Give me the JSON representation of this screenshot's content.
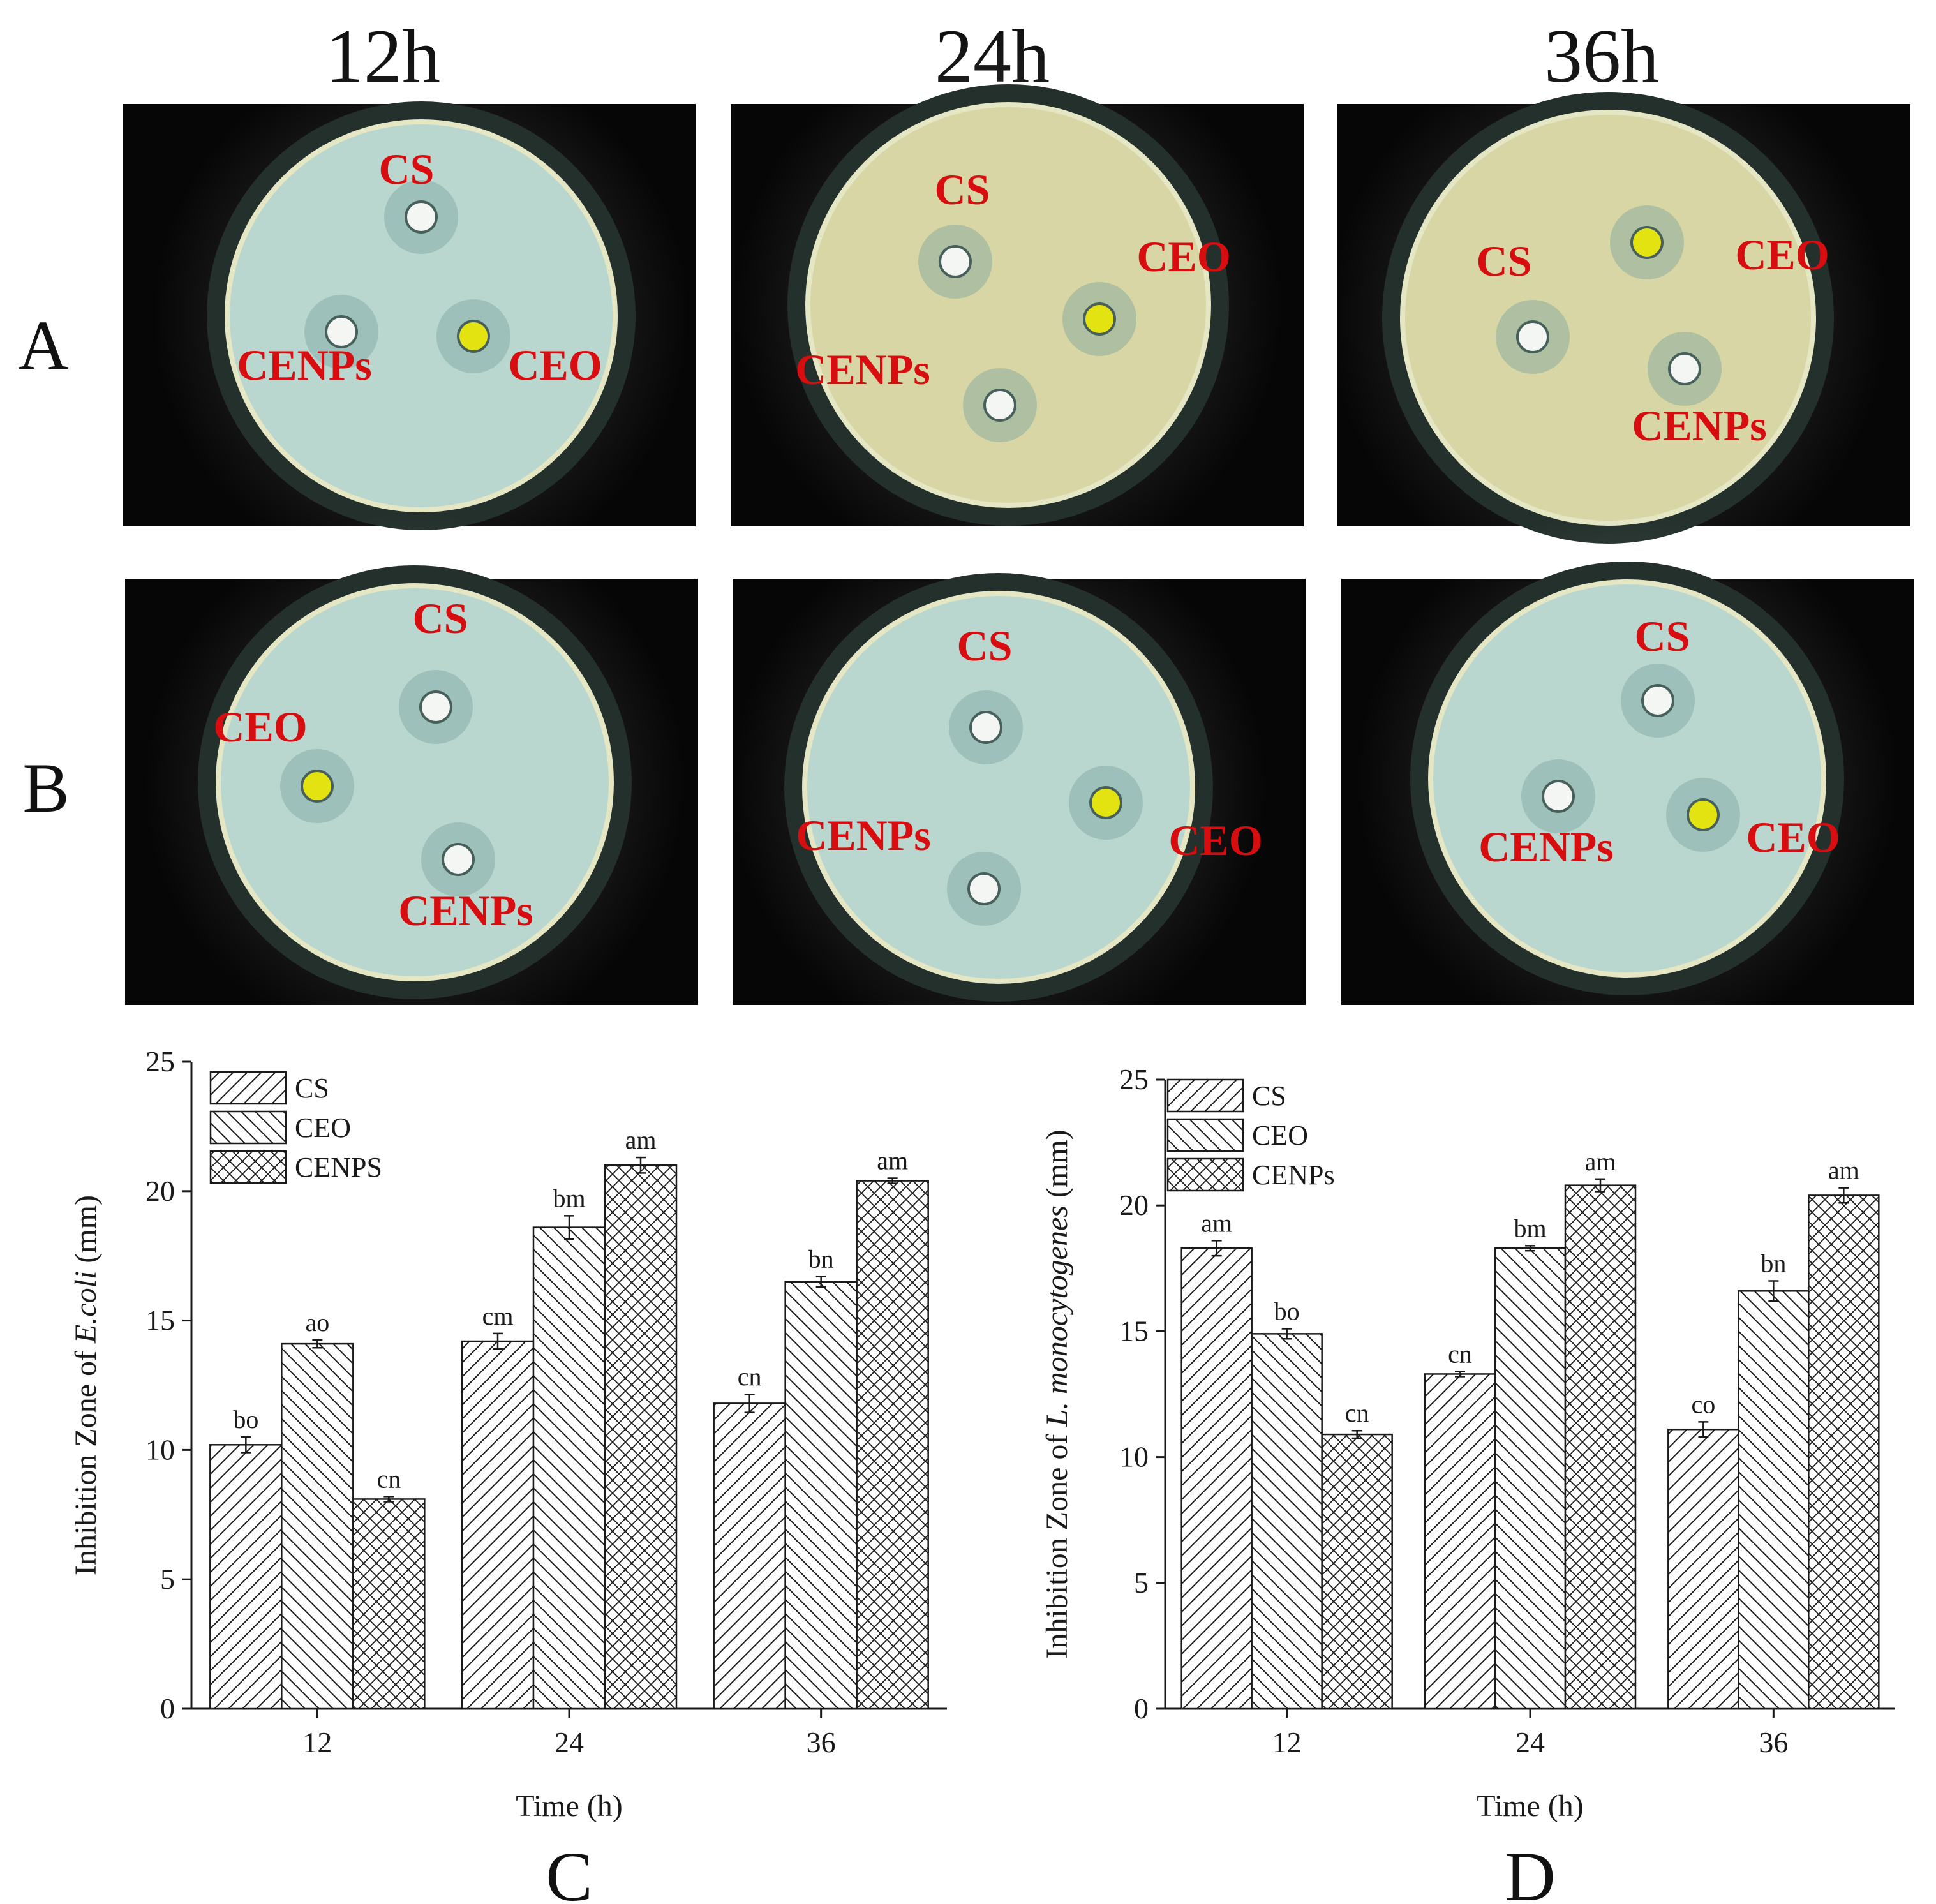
{
  "figure": {
    "time_headers": [
      "12h",
      "24h",
      "36h"
    ],
    "row_labels": [
      "A",
      "B"
    ],
    "plates": [
      {
        "row": "A",
        "time": "12h",
        "labels": [
          "CS",
          "CENPs",
          "CEO"
        ]
      },
      {
        "row": "A",
        "time": "24h",
        "labels": [
          "CS",
          "CEO",
          "CENPs"
        ]
      },
      {
        "row": "A",
        "time": "36h",
        "labels": [
          "CS",
          "CEO",
          "CENPs"
        ]
      },
      {
        "row": "B",
        "time": "12h",
        "labels": [
          "CS",
          "CEO",
          "CENPs"
        ]
      },
      {
        "row": "B",
        "time": "24h",
        "labels": [
          "CS",
          "CENPs",
          "CEO"
        ]
      },
      {
        "row": "B",
        "time": "36h",
        "labels": [
          "CS",
          "CENPs",
          "CEO"
        ]
      }
    ],
    "colors": {
      "label_red": "#d80d10",
      "photo_bg": "#060606",
      "agar": "#b9d7cf"
    }
  },
  "chart_data": [
    {
      "panel": "C",
      "type": "bar",
      "title": "",
      "xlabel": "Time (h)",
      "ylabel_prefix": "Inhibition Zone of ",
      "ylabel_italic": "E.coli",
      "ylabel_suffix": " (mm)",
      "ylim": [
        0,
        25
      ],
      "yticks": [
        0,
        5,
        10,
        15,
        20,
        25
      ],
      "categories": [
        "12",
        "24",
        "36"
      ],
      "legend": [
        "CS",
        "CEO",
        "CENPS"
      ],
      "legend_position": "top-left",
      "series": [
        {
          "name": "CS",
          "pattern": "diag-fwd",
          "values": [
            10.2,
            14.2,
            11.8
          ],
          "errors": [
            0.3,
            0.3,
            0.35
          ],
          "letters": [
            "bo",
            "cm",
            "cn"
          ]
        },
        {
          "name": "CEO",
          "pattern": "diag-back",
          "values": [
            14.1,
            18.6,
            16.5
          ],
          "errors": [
            0.15,
            0.45,
            0.2
          ],
          "letters": [
            "ao",
            "bm",
            "bn"
          ]
        },
        {
          "name": "CENPS",
          "pattern": "cross",
          "values": [
            8.1,
            21.0,
            20.4
          ],
          "errors": [
            0.1,
            0.3,
            0.1
          ],
          "letters": [
            "cn",
            "am",
            "am"
          ]
        }
      ]
    },
    {
      "panel": "D",
      "type": "bar",
      "title": "",
      "xlabel": "Time (h)",
      "ylabel_prefix": "Inhibition Zone of ",
      "ylabel_italic": "L. monocytogenes",
      "ylabel_suffix": " (mm)",
      "ylim": [
        0,
        25
      ],
      "yticks": [
        0,
        5,
        10,
        15,
        20,
        25
      ],
      "categories": [
        "12",
        "24",
        "36"
      ],
      "legend": [
        "CS",
        "CEO",
        "CENPs"
      ],
      "legend_position": "top-left",
      "series": [
        {
          "name": "CS",
          "pattern": "diag-fwd",
          "values": [
            18.3,
            13.3,
            11.1
          ],
          "errors": [
            0.3,
            0.1,
            0.3
          ],
          "letters": [
            "am",
            "cn",
            "co"
          ]
        },
        {
          "name": "CEO",
          "pattern": "diag-back",
          "values": [
            14.9,
            18.3,
            16.6
          ],
          "errors": [
            0.2,
            0.1,
            0.4
          ],
          "letters": [
            "bo",
            "bm",
            "bn"
          ]
        },
        {
          "name": "CENPs",
          "pattern": "cross",
          "values": [
            10.9,
            20.8,
            20.4
          ],
          "errors": [
            0.15,
            0.25,
            0.3
          ],
          "letters": [
            "cn",
            "am",
            "am"
          ]
        }
      ]
    }
  ]
}
